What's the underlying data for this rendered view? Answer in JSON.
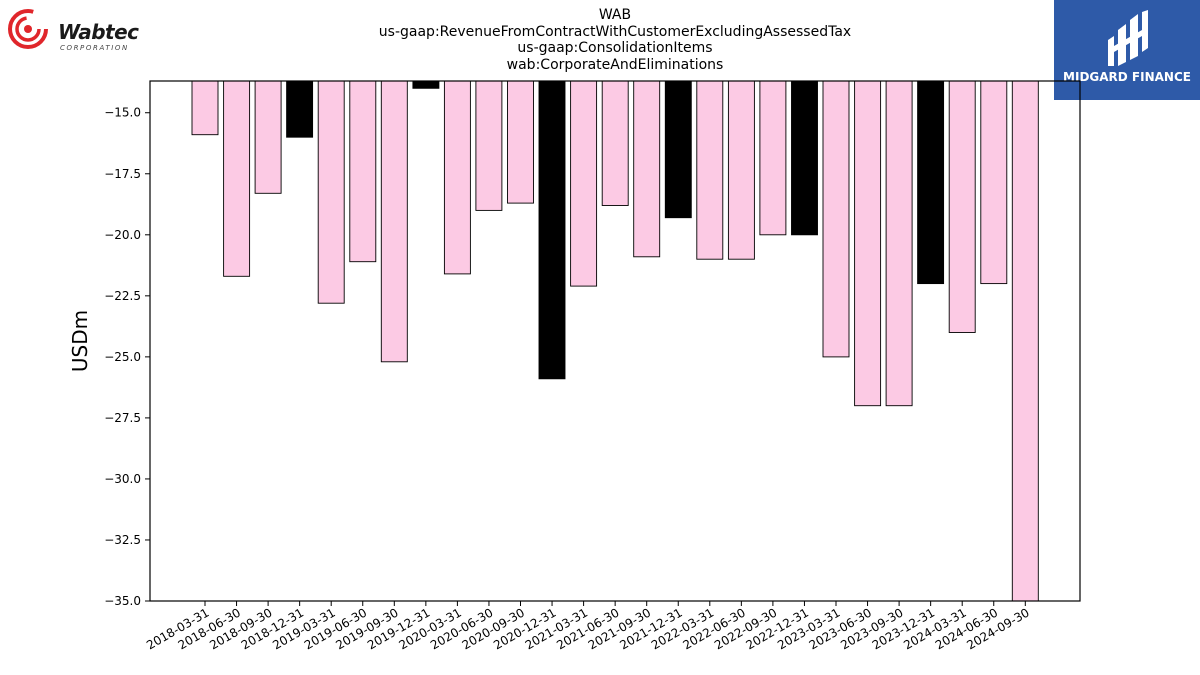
{
  "logos": {
    "left_name": "Wabtec",
    "left_sub": "CORPORATION",
    "right_name": "MIDGARD FINANCE"
  },
  "colors": {
    "normal_bar": "#fccae4",
    "q4_bar": "#000000",
    "accent_red": "#e0262b",
    "brand_blue": "#2e5aa8"
  },
  "chart_data": {
    "type": "bar",
    "title_lines": [
      "WAB",
      "us-gaap:RevenueFromContractWithCustomerExcludingAssessedTax",
      "us-gaap:ConsolidationItems",
      "wab:CorporateAndEliminations"
    ],
    "ylabel": "USDm",
    "xlabel": "",
    "ylim": [
      -35.0,
      -13.7
    ],
    "yticks": [
      "−15.0",
      "−17.5",
      "−20.0",
      "−22.5",
      "−25.0",
      "−27.5",
      "−30.0",
      "−32.5",
      "−35.0"
    ],
    "ytick_values": [
      -15.0,
      -17.5,
      -20.0,
      -22.5,
      -25.0,
      -27.5,
      -30.0,
      -32.5,
      -35.0
    ],
    "grid": false,
    "categories": [
      "2018-03-31",
      "2018-06-30",
      "2018-09-30",
      "2018-12-31",
      "2019-03-31",
      "2019-06-30",
      "2019-09-30",
      "2019-12-31",
      "2020-03-31",
      "2020-06-30",
      "2020-09-30",
      "2020-12-31",
      "2021-03-31",
      "2021-06-30",
      "2021-09-30",
      "2021-12-31",
      "2022-03-31",
      "2022-06-30",
      "2022-09-30",
      "2022-12-31",
      "2023-03-31",
      "2023-06-30",
      "2023-09-30",
      "2023-12-31",
      "2024-03-31",
      "2024-06-30",
      "2024-09-30"
    ],
    "values": [
      -15.9,
      -21.7,
      -18.3,
      -16.0,
      -22.8,
      -21.1,
      -25.2,
      -14.0,
      -21.6,
      -19.0,
      -18.7,
      -25.9,
      -22.1,
      -18.8,
      -20.9,
      -19.3,
      -21.0,
      -21.0,
      -20.0,
      -20.0,
      -25.0,
      -27.0,
      -27.0,
      -22.0,
      -24.0,
      -22.0,
      -35.0
    ],
    "highlight": [
      false,
      false,
      false,
      true,
      false,
      false,
      false,
      true,
      false,
      false,
      false,
      true,
      false,
      false,
      false,
      true,
      false,
      false,
      false,
      true,
      false,
      false,
      false,
      true,
      false,
      false,
      false
    ]
  }
}
